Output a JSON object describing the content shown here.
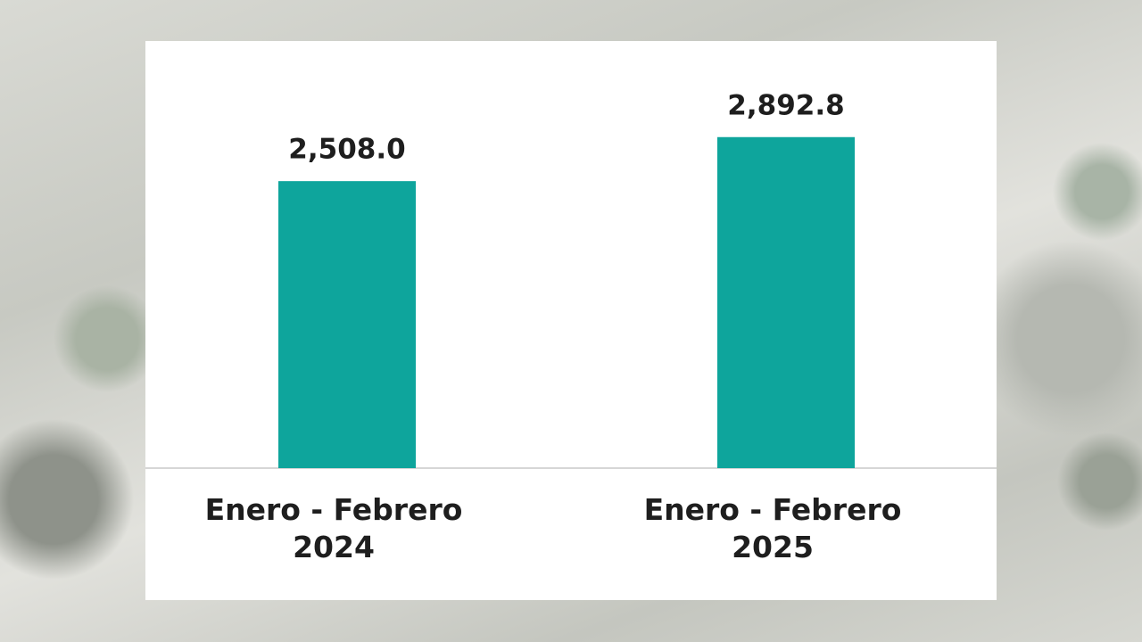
{
  "chart_data": {
    "type": "bar",
    "categories": [
      "Enero - Febrero 2024",
      "Enero - Febrero 2025"
    ],
    "values": [
      2508.0,
      2892.8
    ],
    "value_labels": [
      "2,508.0",
      "2,892.8"
    ],
    "color": "#0ea59c",
    "ylim": [
      0,
      3000
    ]
  }
}
